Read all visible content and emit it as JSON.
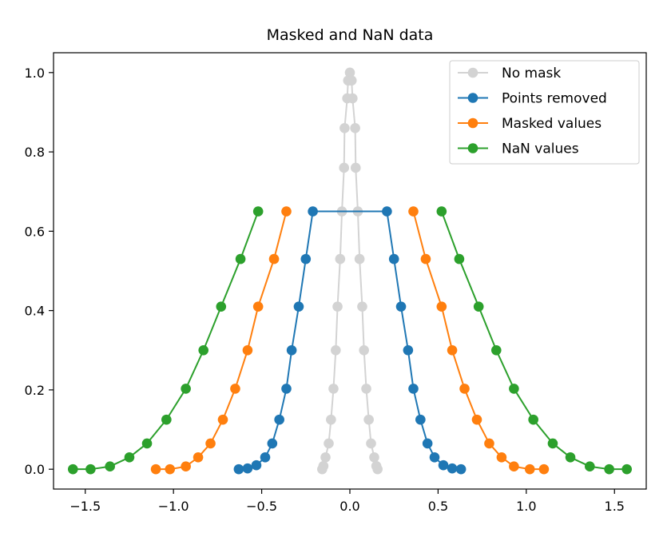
{
  "chart_data": {
    "type": "line",
    "title": "Masked and NaN data",
    "xlabel": "",
    "ylabel": "",
    "xlim": [
      -1.68,
      1.68
    ],
    "ylim": [
      -0.05,
      1.05
    ],
    "xticks": [
      -1.5,
      -1.0,
      -0.5,
      0.0,
      0.5,
      1.0,
      1.5
    ],
    "xtick_labels": [
      "−1.5",
      "−1.0",
      "−0.5",
      "0.0",
      "0.5",
      "1.0",
      "1.5"
    ],
    "yticks": [
      0.0,
      0.2,
      0.4,
      0.6,
      0.8,
      1.0
    ],
    "ytick_labels": [
      "0.0",
      "0.2",
      "0.4",
      "0.6",
      "0.8",
      "1.0"
    ],
    "grid": false,
    "legend_position": "top-right",
    "series": [
      {
        "name": "No mask",
        "color": "#d3d3d3",
        "x": [
          -0.157,
          -0.15,
          -0.138,
          -0.12,
          -0.105,
          -0.09,
          -0.075,
          -0.06,
          -0.045,
          -0.03,
          -0.015,
          0.0,
          0.015,
          0.03,
          0.045,
          0.06,
          0.075,
          0.09,
          0.105,
          0.12,
          0.138,
          0.15,
          0.157
        ],
        "y": [
          0.0,
          0.01,
          0.032,
          0.067,
          0.125,
          0.205,
          0.3,
          0.41,
          0.53,
          0.65,
          0.76,
          0.86,
          0.93,
          0.98,
          1.0,
          0.98,
          0.93,
          0.86,
          0.76,
          0.65,
          0.53,
          0.41,
          0.3
        ],
        "segments": [
          [
            [
              -0.157,
              0.0
            ],
            [
              -0.15,
              0.008
            ],
            [
              -0.138,
              0.03
            ],
            [
              -0.12,
              0.065
            ],
            [
              -0.107,
              0.125
            ],
            [
              -0.093,
              0.203
            ],
            [
              -0.08,
              0.3
            ],
            [
              -0.07,
              0.41
            ],
            [
              -0.055,
              0.53
            ],
            [
              -0.045,
              0.65
            ],
            [
              -0.033,
              0.76
            ],
            [
              -0.03,
              0.86
            ],
            [
              -0.015,
              0.935
            ],
            [
              -0.01,
              0.98
            ],
            [
              0.0,
              1.0
            ],
            [
              0.01,
              0.98
            ],
            [
              0.015,
              0.935
            ],
            [
              0.03,
              0.86
            ],
            [
              0.033,
              0.76
            ],
            [
              0.045,
              0.65
            ],
            [
              0.055,
              0.53
            ],
            [
              0.07,
              0.41
            ],
            [
              0.08,
              0.3
            ],
            [
              0.093,
              0.203
            ],
            [
              0.107,
              0.125
            ],
            [
              0.12,
              0.065
            ],
            [
              0.138,
              0.03
            ],
            [
              0.15,
              0.008
            ],
            [
              0.157,
              0.0
            ]
          ]
        ]
      },
      {
        "name": "Points removed",
        "color": "#1f77b4",
        "segments": [
          [
            [
              -0.63,
              0.0
            ],
            [
              -0.58,
              0.002
            ],
            [
              -0.53,
              0.01
            ],
            [
              -0.48,
              0.03
            ],
            [
              -0.44,
              0.065
            ],
            [
              -0.4,
              0.125
            ],
            [
              -0.36,
              0.203
            ],
            [
              -0.33,
              0.3
            ],
            [
              -0.29,
              0.41
            ],
            [
              -0.25,
              0.53
            ],
            [
              -0.21,
              0.65
            ],
            [
              0.21,
              0.65
            ],
            [
              0.25,
              0.53
            ],
            [
              0.29,
              0.41
            ],
            [
              0.33,
              0.3
            ],
            [
              0.36,
              0.203
            ],
            [
              0.4,
              0.125
            ],
            [
              0.44,
              0.065
            ],
            [
              0.48,
              0.03
            ],
            [
              0.53,
              0.01
            ],
            [
              0.58,
              0.002
            ],
            [
              0.63,
              0.0
            ]
          ]
        ]
      },
      {
        "name": "Masked values",
        "color": "#ff7f0e",
        "segments": [
          [
            [
              -1.1,
              0.0
            ],
            [
              -1.02,
              0.0
            ],
            [
              -0.93,
              0.007
            ],
            [
              -0.86,
              0.03
            ],
            [
              -0.79,
              0.065
            ],
            [
              -0.72,
              0.125
            ],
            [
              -0.65,
              0.203
            ],
            [
              -0.58,
              0.3
            ],
            [
              -0.52,
              0.41
            ],
            [
              -0.43,
              0.53
            ],
            [
              -0.36,
              0.65
            ]
          ],
          [
            [
              0.36,
              0.65
            ],
            [
              0.43,
              0.53
            ],
            [
              0.52,
              0.41
            ],
            [
              0.58,
              0.3
            ],
            [
              0.65,
              0.203
            ],
            [
              0.72,
              0.125
            ],
            [
              0.79,
              0.065
            ],
            [
              0.86,
              0.03
            ],
            [
              0.93,
              0.007
            ],
            [
              1.02,
              0.0
            ],
            [
              1.1,
              0.0
            ]
          ]
        ]
      },
      {
        "name": "NaN values",
        "color": "#2ca02c",
        "segments": [
          [
            [
              -1.57,
              0.0
            ],
            [
              -1.47,
              0.0
            ],
            [
              -1.36,
              0.007
            ],
            [
              -1.25,
              0.03
            ],
            [
              -1.15,
              0.065
            ],
            [
              -1.04,
              0.125
            ],
            [
              -0.93,
              0.203
            ],
            [
              -0.83,
              0.3
            ],
            [
              -0.73,
              0.41
            ],
            [
              -0.62,
              0.53
            ],
            [
              -0.52,
              0.65
            ]
          ],
          [
            [
              0.52,
              0.65
            ],
            [
              0.62,
              0.53
            ],
            [
              0.73,
              0.41
            ],
            [
              0.83,
              0.3
            ],
            [
              0.93,
              0.203
            ],
            [
              1.04,
              0.125
            ],
            [
              1.15,
              0.065
            ],
            [
              1.25,
              0.03
            ],
            [
              1.36,
              0.007
            ],
            [
              1.47,
              0.0
            ],
            [
              1.57,
              0.0
            ]
          ]
        ]
      }
    ]
  }
}
